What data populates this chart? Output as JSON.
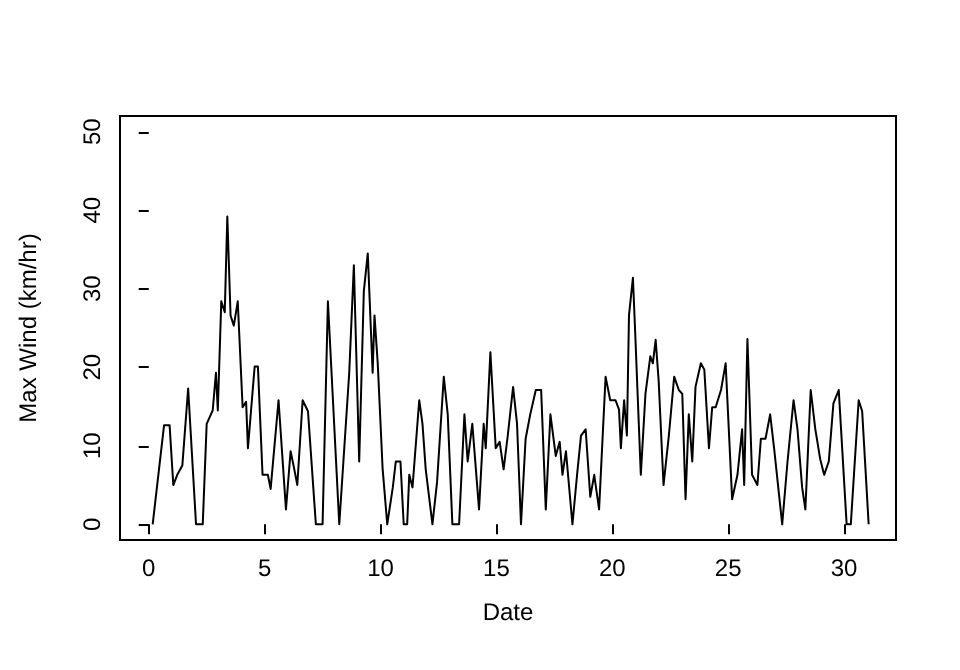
{
  "chart_data": {
    "type": "line",
    "xlabel": "Date",
    "ylabel": "Max Wind (km/hr)",
    "x": [
      0.17,
      0.66,
      0.9,
      1.06,
      1.23,
      1.45,
      1.7,
      2.04,
      2.33,
      2.5,
      2.76,
      2.9,
      2.98,
      3.13,
      3.28,
      3.39,
      3.53,
      3.67,
      3.84,
      4.05,
      4.2,
      4.28,
      4.57,
      4.71,
      4.91,
      5.14,
      5.26,
      5.6,
      5.92,
      6.12,
      6.24,
      6.41,
      6.64,
      6.87,
      7.21,
      7.5,
      7.73,
      8.22,
      8.65,
      8.85,
      9.08,
      9.28,
      9.45,
      9.66,
      9.74,
      9.88,
      10.09,
      10.29,
      10.53,
      10.66,
      10.86,
      11.0,
      11.15,
      11.24,
      11.38,
      11.67,
      11.81,
      11.95,
      12.24,
      12.44,
      12.73,
      12.9,
      13.1,
      13.39,
      13.62,
      13.76,
      13.96,
      14.25,
      14.45,
      14.54,
      14.74,
      14.97,
      15.14,
      15.31,
      15.49,
      15.72,
      15.89,
      16.06,
      16.26,
      16.46,
      16.7,
      16.93,
      17.13,
      17.33,
      17.56,
      17.73,
      17.85,
      18.0,
      18.28,
      18.48,
      18.65,
      18.85,
      19.05,
      19.22,
      19.43,
      19.71,
      19.91,
      20.14,
      20.29,
      20.37,
      20.51,
      20.63,
      20.72,
      20.89,
      21.0,
      21.23,
      21.43,
      21.64,
      21.75,
      21.87,
      22.0,
      22.21,
      22.44,
      22.67,
      22.87,
      23.02,
      23.16,
      23.3,
      23.45,
      23.59,
      23.82,
      23.97,
      24.17,
      24.31,
      24.46,
      24.69,
      24.89,
      25.17,
      25.4,
      25.6,
      25.69,
      25.83,
      26.03,
      26.26,
      26.41,
      26.61,
      26.81,
      26.98,
      27.33,
      27.56,
      27.82,
      27.99,
      28.19,
      28.33,
      28.56,
      28.76,
      28.97,
      29.14,
      29.34,
      29.54,
      29.77,
      30.11,
      30.29,
      30.63,
      30.78,
      31.06
    ],
    "values": [
      0,
      12.6,
      12.6,
      5,
      6.3,
      7.5,
      17.3,
      0,
      0,
      12.8,
      14.5,
      19.3,
      14.5,
      28.4,
      27,
      39.2,
      26.6,
      25.3,
      28.4,
      14.9,
      15.6,
      9.7,
      20.1,
      20.1,
      6.3,
      6.3,
      4.5,
      15.8,
      1.9,
      9.3,
      7.6,
      5,
      15.8,
      14.4,
      0,
      0,
      28.4,
      0,
      19.3,
      33,
      8,
      29.7,
      34.5,
      19.3,
      26.6,
      20.5,
      7.1,
      0,
      4.7,
      8,
      8,
      0,
      0,
      6.3,
      4.7,
      15.8,
      12.8,
      7,
      0,
      5.4,
      18.8,
      14,
      0,
      0,
      14,
      8,
      12.8,
      1.9,
      12.8,
      9.7,
      21.9,
      9.7,
      10.5,
      7,
      11.3,
      17.5,
      12.8,
      0,
      10.9,
      14,
      17.1,
      17.1,
      1.9,
      14,
      8.7,
      10.5,
      6.3,
      9.3,
      0,
      6.3,
      11.3,
      12.1,
      3.5,
      6.3,
      1.9,
      18.8,
      15.8,
      15.8,
      14.6,
      9.7,
      15.8,
      11.3,
      26.6,
      31.4,
      23.5,
      6.3,
      16.6,
      21.4,
      20.5,
      23.5,
      18.3,
      5,
      11.3,
      18.8,
      17.1,
      16.6,
      3.2,
      14,
      8,
      17.5,
      20.5,
      19.7,
      9.7,
      14.9,
      14.9,
      17.1,
      20.5,
      3.2,
      6.3,
      12.1,
      5,
      23.6,
      6.3,
      5,
      10.9,
      10.9,
      14,
      9.7,
      0,
      8,
      15.8,
      12.1,
      4.7,
      1.9,
      17.1,
      12.1,
      8.3,
      6.3,
      8,
      15.4,
      17.1,
      0,
      0,
      15.8,
      14.4,
      0
    ],
    "color": "#000000",
    "xlim": [
      -1.24,
      32.24
    ],
    "ylim": [
      -2,
      52
    ],
    "xticks": [
      0,
      5,
      10,
      15,
      20,
      25,
      30
    ],
    "yticks": [
      0,
      10,
      20,
      30,
      40,
      50
    ],
    "grid": false,
    "marker": "none",
    "line_style": "solid"
  }
}
